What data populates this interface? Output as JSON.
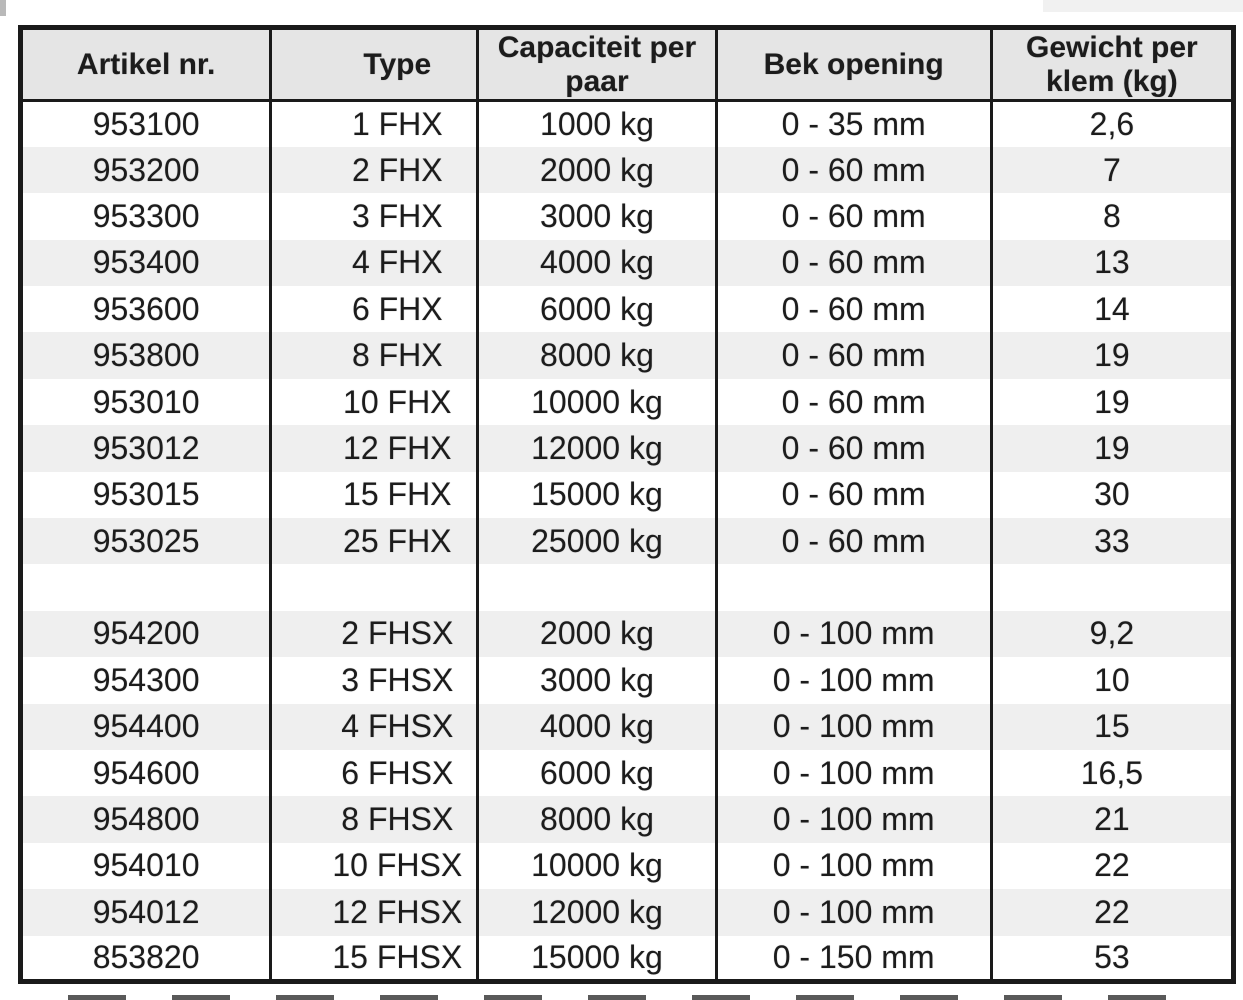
{
  "table": {
    "columns": [
      {
        "key": "artikel-nr",
        "label": "Artikel nr."
      },
      {
        "key": "type",
        "label": "Type"
      },
      {
        "key": "capaciteit",
        "label": "Capaciteit per paar"
      },
      {
        "key": "bek-opening",
        "label": "Bek opening"
      },
      {
        "key": "gewicht",
        "label": "Gewicht per klem (kg)"
      }
    ],
    "rows": [
      [
        "953100",
        "1 FHX",
        "1000 kg",
        "0 - 35 mm",
        "2,6"
      ],
      [
        "953200",
        "2 FHX",
        "2000 kg",
        "0 - 60 mm",
        "7"
      ],
      [
        "953300",
        "3 FHX",
        "3000 kg",
        "0 - 60 mm",
        "8"
      ],
      [
        "953400",
        "4 FHX",
        "4000 kg",
        "0 - 60 mm",
        "13"
      ],
      [
        "953600",
        "6 FHX",
        "6000 kg",
        "0 - 60 mm",
        "14"
      ],
      [
        "953800",
        "8 FHX",
        "8000 kg",
        "0 - 60 mm",
        "19"
      ],
      [
        "953010",
        "10 FHX",
        "10000 kg",
        "0 - 60 mm",
        "19"
      ],
      [
        "953012",
        "12 FHX",
        "12000 kg",
        "0 - 60 mm",
        "19"
      ],
      [
        "953015",
        "15 FHX",
        "15000 kg",
        "0 - 60 mm",
        "30"
      ],
      [
        "953025",
        "25 FHX",
        "25000 kg",
        "0 - 60 mm",
        "33"
      ],
      [
        "",
        "",
        "",
        "",
        ""
      ],
      [
        "954200",
        "2 FHSX",
        "2000 kg",
        "0 - 100 mm",
        "9,2"
      ],
      [
        "954300",
        "3 FHSX",
        "3000 kg",
        "0 - 100 mm",
        "10"
      ],
      [
        "954400",
        "4 FHSX",
        "4000 kg",
        "0 - 100 mm",
        "15"
      ],
      [
        "954600",
        "6 FHSX",
        "6000 kg",
        "0 - 100 mm",
        "16,5"
      ],
      [
        "954800",
        "8 FHSX",
        "8000 kg",
        "0 - 100 mm",
        "21"
      ],
      [
        "954010",
        "10 FHSX",
        "10000 kg",
        "0 - 100 mm",
        "22"
      ],
      [
        "954012",
        "12 FHSX",
        "12000 kg",
        "0 - 100 mm",
        "22"
      ],
      [
        "853820",
        "15 FHSX",
        "15000 kg",
        "0 - 150 mm",
        "53"
      ]
    ]
  },
  "colors": {
    "border": "#1a1a1a",
    "header_bg": "#e5e5e5",
    "stripe_bg": "#efefef",
    "row_bg": "#ffffff",
    "text": "#1c1c1c"
  }
}
